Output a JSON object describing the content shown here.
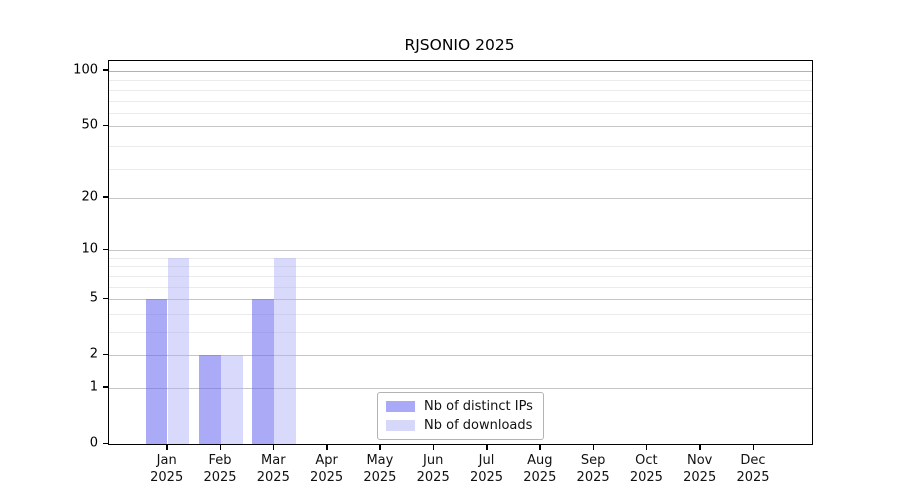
{
  "title": "RJSONIO 2025",
  "chart_data": {
    "type": "bar",
    "title": "RJSONIO 2025",
    "yscale": "log1p",
    "grid": true,
    "categories": [
      {
        "month": "Jan",
        "year": "2025"
      },
      {
        "month": "Feb",
        "year": "2025"
      },
      {
        "month": "Mar",
        "year": "2025"
      },
      {
        "month": "Apr",
        "year": "2025"
      },
      {
        "month": "May",
        "year": "2025"
      },
      {
        "month": "Jun",
        "year": "2025"
      },
      {
        "month": "Jul",
        "year": "2025"
      },
      {
        "month": "Aug",
        "year": "2025"
      },
      {
        "month": "Sep",
        "year": "2025"
      },
      {
        "month": "Oct",
        "year": "2025"
      },
      {
        "month": "Nov",
        "year": "2025"
      },
      {
        "month": "Dec",
        "year": "2025"
      }
    ],
    "series": [
      {
        "name": "Nb of distinct IPs",
        "values": [
          5,
          2,
          5,
          0,
          0,
          0,
          0,
          0,
          0,
          0,
          0,
          0
        ]
      },
      {
        "name": "Nb of downloads",
        "values": [
          9,
          2,
          9,
          0,
          0,
          0,
          0,
          0,
          0,
          0,
          0,
          0
        ]
      }
    ],
    "ylim": [
      0,
      113
    ],
    "yticks": [
      0,
      1,
      2,
      5,
      10,
      20,
      50,
      100
    ],
    "minor_grid_values": [
      3,
      4,
      6,
      7,
      8,
      9,
      29,
      39,
      59,
      69,
      79,
      89
    ],
    "legend_position": "bottom-center"
  },
  "legend": {
    "items": [
      {
        "label": "Nb of distinct IPs",
        "swatch_color": "#a9a9f7"
      },
      {
        "label": "Nb of downloads",
        "swatch_color": "#d7d7fa"
      }
    ]
  },
  "colors": {
    "bar_distinct_ips": "rgba(100,100,239,0.55)",
    "bar_downloads": "rgba(170,170,247,0.45)",
    "grid_major": "#c6c6c6",
    "grid_major_top": "#b2b2b2",
    "grid_minor": "#ebebeb",
    "axis": "#000000",
    "background": "#ffffff"
  }
}
